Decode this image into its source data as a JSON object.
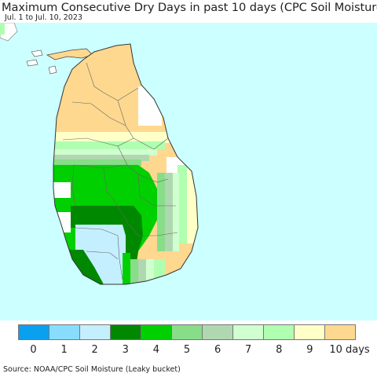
{
  "header": {
    "title": "Maximum Consecutive Dry Days in past 10 days (CPC Soil Moisture)",
    "subtitle": "Jul. 1 to Jul. 10, 2023"
  },
  "map": {
    "region_icon": "sri-lanka-map-icon",
    "ocean_color": "#ccffff",
    "boundary_color": "#555555"
  },
  "legend": {
    "colors": [
      "#0aa0f0",
      "#88ddff",
      "#c4efff",
      "#008800",
      "#00d000",
      "#88dd88",
      "#b0d8b0",
      "#d0ffd0",
      "#b0ffb0",
      "#ffffc8",
      "#ffd890"
    ],
    "labels": [
      "0",
      "1",
      "2",
      "3",
      "4",
      "5",
      "6",
      "7",
      "8",
      "9",
      "10 days"
    ]
  },
  "footer": {
    "source": "Source: NOAA/CPC Soil Moisture (Leaky bucket)"
  }
}
